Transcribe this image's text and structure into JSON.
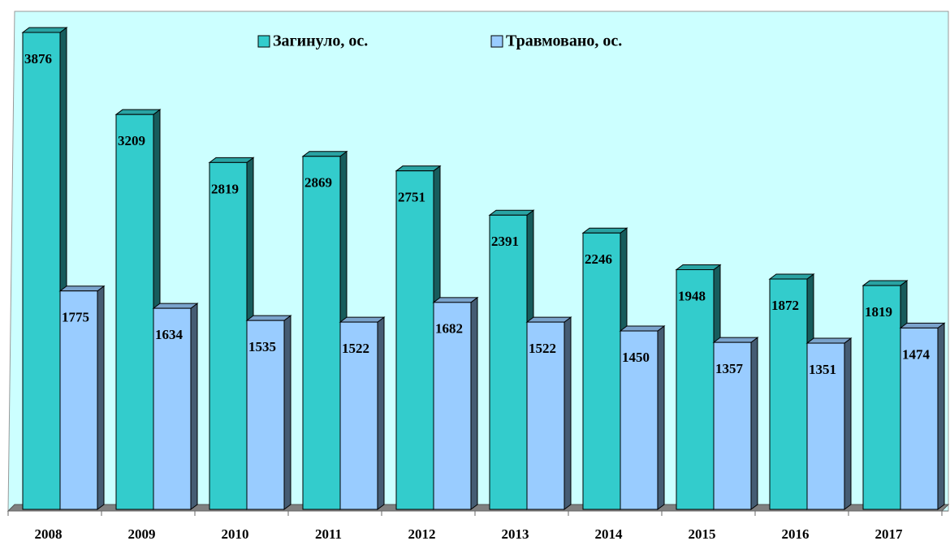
{
  "chart_data": {
    "type": "bar3d",
    "categories": [
      "2008",
      "2009",
      "2010",
      "2011",
      "2012",
      "2013",
      "2014",
      "2015",
      "2016",
      "2017"
    ],
    "series": [
      {
        "name": "Загинуло, ос.",
        "color": "#33cccc",
        "values": [
          3876,
          3209,
          2819,
          2869,
          2751,
          2391,
          2246,
          1948,
          1872,
          1819
        ]
      },
      {
        "name": "Травмовано, ос.",
        "color": "#99ccff",
        "values": [
          1775,
          1634,
          1535,
          1522,
          1682,
          1522,
          1450,
          1357,
          1351,
          1474
        ]
      }
    ],
    "legend": "top"
  }
}
